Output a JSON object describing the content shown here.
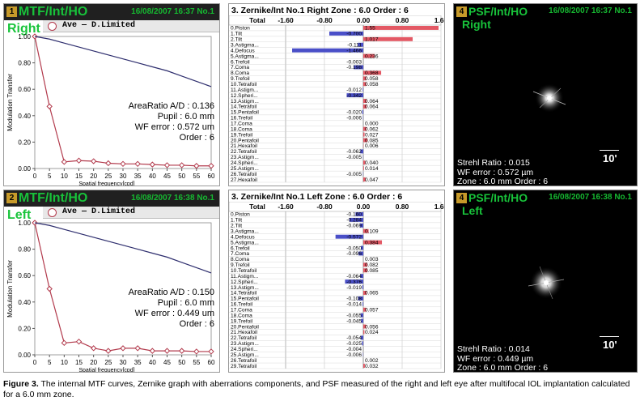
{
  "top": {
    "mtf": {
      "badge": "1",
      "title": "MTF/Int/HO",
      "timestamp": "16/08/2007 16:37 No.1",
      "eye": "Right",
      "legend": "Ave — D.Limited",
      "ylabel": "Modulation Transfer",
      "xlabel": "Spatial frequency[cpd]",
      "info": {
        "area_ratio": "AreaRatio A/D : 0.136",
        "pupil": "Pupil : 6.0 mm",
        "wf_error": "WF error : 0.572 um",
        "order": "Order : 6"
      }
    },
    "zernike": {
      "badge": "3",
      "title": "3. Zernike/Int No.1 Right Zone : 6.0 Order : 6",
      "total_label": "Total",
      "scale": [
        "-1.60",
        "-0.80",
        "0.00",
        "0.80",
        "1.60"
      ],
      "rows": [
        {
          "label": "0.Piston",
          "value": "1.55"
        },
        {
          "label": "1.Tilt",
          "value": "-0.700"
        },
        {
          "label": "2.Tilt",
          "value": "1.017"
        },
        {
          "label": "3.Astigma...",
          "value": "-0.111"
        },
        {
          "label": "4.Defocus",
          "value": "-1.466"
        },
        {
          "label": "5.Astigma...",
          "value": "0.236"
        },
        {
          "label": "6.Trefoil",
          "value": "-0.003"
        },
        {
          "label": "7.Coma",
          "value": "-0.198"
        },
        {
          "label": "8.Coma",
          "value": "0.368"
        },
        {
          "label": "9.Trefoil",
          "value": "0.058"
        },
        {
          "label": "10.Tetrafoil",
          "value": "0.058"
        },
        {
          "label": "11.Astigm...",
          "value": "-0.012"
        },
        {
          "label": "12.Spheri...",
          "value": "-0.342"
        },
        {
          "label": "13.Astigm...",
          "value": "0.064"
        },
        {
          "label": "14.Tetrafoil",
          "value": "0.064"
        },
        {
          "label": "15.Pentafoil",
          "value": "-0.020"
        },
        {
          "label": "16.Trefoil",
          "value": "-0.006"
        },
        {
          "label": "17.Coma",
          "value": "0.000"
        },
        {
          "label": "18.Coma",
          "value": "0.062"
        },
        {
          "label": "19.Trefoil",
          "value": "0.027"
        },
        {
          "label": "20.Pentafoil",
          "value": "0.085"
        },
        {
          "label": "21.Hexafoil",
          "value": "0.006"
        },
        {
          "label": "22.Tetrafoil",
          "value": "-0.062"
        },
        {
          "label": "23.Astigm...",
          "value": "-0.005"
        },
        {
          "label": "24.Spheri...",
          "value": "0.040"
        },
        {
          "label": "25.Astigm...",
          "value": "0.014"
        },
        {
          "label": "26.Tetrafoil",
          "value": "-0.005"
        },
        {
          "label": "27.Hexafoil",
          "value": "0.047"
        }
      ]
    },
    "psf": {
      "badge": "4",
      "title": "PSF/Int/HO",
      "timestamp": "16/08/2007 16:37 No.1",
      "eye": "Right",
      "scale_label": "10'",
      "strehl": "Strehl Ratio : 0.015",
      "wf_error": "WF error : 0.572 µm",
      "zone": "Zone : 6.0 mm Order : 6"
    }
  },
  "bottom": {
    "mtf": {
      "badge": "2",
      "title": "MTF/Int/HO",
      "timestamp": "16/08/2007 16:38 No.1",
      "eye": "Left",
      "legend": "Ave — D.Limited",
      "ylabel": "Modulation Transfer",
      "xlabel": "Spatial frequency[cpd]",
      "info": {
        "area_ratio": "AreaRatio A/D : 0.150",
        "pupil": "Pupil : 6.0 mm",
        "wf_error": "WF error : 0.449 um",
        "order": "Order : 6"
      }
    },
    "zernike": {
      "badge": "3",
      "title": "3. Zernike/Int No.1 Left Zone : 6.0 Order : 6",
      "total_label": "Total",
      "scale": [
        "-1.60",
        "-0.80",
        "0.00",
        "0.80",
        "1.60"
      ],
      "rows": [
        {
          "label": "0.Piston",
          "value": "-0.160"
        },
        {
          "label": "1.Tilt",
          "value": "-0.284"
        },
        {
          "label": "2.Tilt",
          "value": "-0.069"
        },
        {
          "label": "3.Astigma...",
          "value": "0.109"
        },
        {
          "label": "4.Defocus",
          "value": "-0.572"
        },
        {
          "label": "5.Astigma...",
          "value": "0.384"
        },
        {
          "label": "6.Trefoil",
          "value": "-0.050"
        },
        {
          "label": "7.Coma",
          "value": "-0.096"
        },
        {
          "label": "8.Coma",
          "value": "0.003"
        },
        {
          "label": "9.Trefoil",
          "value": "0.082"
        },
        {
          "label": "10.Tetrafoil",
          "value": "0.085"
        },
        {
          "label": "11.Astigm...",
          "value": "-0.064"
        },
        {
          "label": "12.Spheri...",
          "value": "-0.376"
        },
        {
          "label": "13.Astigm...",
          "value": "-0.019"
        },
        {
          "label": "14.Tetrafoil",
          "value": "0.065"
        },
        {
          "label": "15.Pentafoil",
          "value": "-0.108"
        },
        {
          "label": "16.Trefoil",
          "value": "-0.014"
        },
        {
          "label": "17.Coma",
          "value": "0.057"
        },
        {
          "label": "18.Coma",
          "value": "-0.055"
        },
        {
          "label": "19.Trefoil",
          "value": "-0.045"
        },
        {
          "label": "20.Pentafoil",
          "value": "0.056"
        },
        {
          "label": "21.Hexafoil",
          "value": "0.024"
        },
        {
          "label": "22.Tetrafoil",
          "value": "-0.054"
        },
        {
          "label": "23.Astigm...",
          "value": "-0.025"
        },
        {
          "label": "24.Spheri...",
          "value": "-0.004"
        },
        {
          "label": "25.Astigm...",
          "value": "-0.006"
        },
        {
          "label": "26.Tetrafoil",
          "value": "0.002"
        },
        {
          "label": "29.Tetrafoil",
          "value": "0.032"
        }
      ]
    },
    "psf": {
      "badge": "4",
      "title": "PSF/Int/HO",
      "timestamp": "16/08/2007 16:38 No.1",
      "eye": "Left",
      "scale_label": "10'",
      "strehl": "Strehl Ratio : 0.014",
      "wf_error": "WF error : 0.449 µm",
      "zone": "Zone : 6.0 mm Order : 6"
    }
  },
  "caption": {
    "label": "Figure 3.",
    "text": " The internal MTF curves, Zernike graph with aberrations components, and PSF measured of the right and left eye after multifocal IOL implantation calculated for a 6.0 mm zone."
  },
  "colors": {
    "ave": "#b23a4c",
    "limited": "#2e2e6e",
    "pos_bar": "#e35864",
    "neg_bar": "#4a4fc8",
    "title_green": "#18c23a"
  },
  "chart_data": [
    {
      "type": "line",
      "xlabel": "Spatial frequency[cpd]",
      "ylabel": "Modulation Transfer",
      "xlim": [
        0,
        60
      ],
      "ylim": [
        0,
        1.0
      ],
      "x_ticks": [
        "0",
        "5",
        "10",
        "15",
        "20",
        "25",
        "30",
        "35",
        "40",
        "45",
        "50",
        "55",
        "60"
      ],
      "y_ticks": [
        "0.00",
        "0.20",
        "0.40",
        "0.60",
        "0.80",
        "1.00"
      ],
      "series": [
        {
          "name": "Ave",
          "x": [
            0,
            5,
            10,
            15,
            20,
            25,
            30,
            35,
            40,
            45,
            50,
            55,
            60
          ],
          "values": [
            1.0,
            0.47,
            0.05,
            0.06,
            0.055,
            0.04,
            0.035,
            0.035,
            0.03,
            0.025,
            0.025,
            0.02,
            0.02
          ]
        },
        {
          "name": "D.Limited",
          "x": [
            0,
            5,
            10,
            15,
            20,
            25,
            30,
            35,
            40,
            45,
            50,
            55,
            60
          ],
          "values": [
            1.0,
            0.98,
            0.95,
            0.92,
            0.89,
            0.86,
            0.83,
            0.8,
            0.77,
            0.74,
            0.7,
            0.66,
            0.62
          ]
        }
      ]
    },
    {
      "type": "line",
      "xlabel": "Spatial frequency[cpd]",
      "ylabel": "Modulation Transfer",
      "xlim": [
        0,
        60
      ],
      "ylim": [
        0,
        1.0
      ],
      "x_ticks": [
        "0",
        "5",
        "10",
        "15",
        "20",
        "25",
        "30",
        "35",
        "40",
        "45",
        "50",
        "55",
        "60"
      ],
      "y_ticks": [
        "0.00",
        "0.20",
        "0.40",
        "0.60",
        "0.80",
        "1.00"
      ],
      "series": [
        {
          "name": "Ave",
          "x": [
            0,
            5,
            10,
            15,
            20,
            25,
            30,
            35,
            40,
            45,
            50,
            55,
            60
          ],
          "values": [
            1.0,
            0.5,
            0.09,
            0.1,
            0.05,
            0.03,
            0.05,
            0.05,
            0.03,
            0.03,
            0.03,
            0.025,
            0.025
          ]
        },
        {
          "name": "D.Limited",
          "x": [
            0,
            5,
            10,
            15,
            20,
            25,
            30,
            35,
            40,
            45,
            50,
            55,
            60
          ],
          "values": [
            1.0,
            0.98,
            0.95,
            0.92,
            0.89,
            0.86,
            0.83,
            0.8,
            0.77,
            0.74,
            0.7,
            0.66,
            0.62
          ]
        }
      ]
    }
  ]
}
